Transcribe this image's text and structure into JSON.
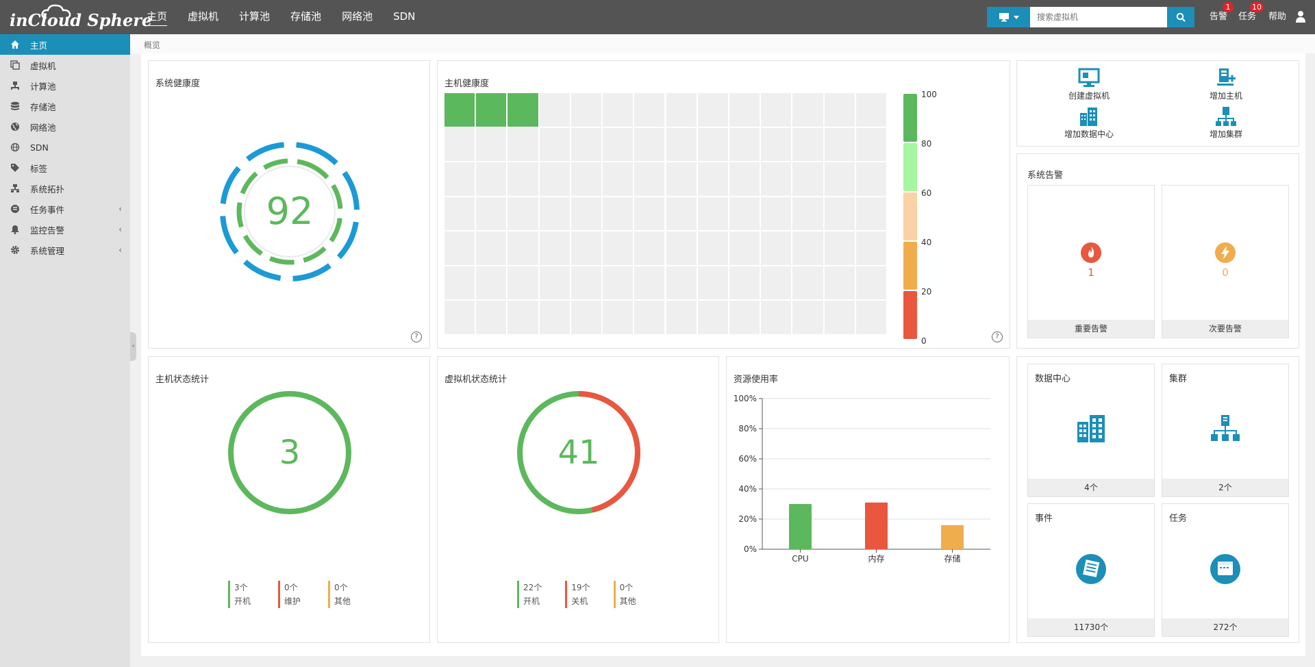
{
  "app": {
    "logo_text": "inCloud Sphere"
  },
  "topnav": [
    "主页",
    "虚拟机",
    "计算池",
    "存储池",
    "网络池",
    "SDN"
  ],
  "search": {
    "placeholder": "搜索虚拟机"
  },
  "tools": {
    "alarm": {
      "label": "告警",
      "badge": "1"
    },
    "task": {
      "label": "任务",
      "badge": "10"
    },
    "help": {
      "label": "帮助"
    }
  },
  "sidebar": {
    "items": [
      {
        "label": "主页",
        "icon": "home-icon"
      },
      {
        "label": "虚拟机",
        "icon": "vm-icon"
      },
      {
        "label": "计算池",
        "icon": "compute-icon"
      },
      {
        "label": "存储池",
        "icon": "storage-icon"
      },
      {
        "label": "网络池",
        "icon": "globe-icon"
      },
      {
        "label": "SDN",
        "icon": "sdn-icon"
      },
      {
        "label": "标签",
        "icon": "tag-icon"
      },
      {
        "label": "系统拓扑",
        "icon": "topology-icon"
      },
      {
        "label": "任务事件",
        "icon": "task-event-icon"
      },
      {
        "label": "监控告警",
        "icon": "bell-icon"
      },
      {
        "label": "系统管理",
        "icon": "gear-icon"
      }
    ]
  },
  "breadcrumb": "概览",
  "health": {
    "title": "系统健康度",
    "score": "92"
  },
  "host_health": {
    "title": "主机健康度",
    "grid_rows": 7,
    "grid_cols": 14,
    "host_scores": [
      100,
      100,
      100
    ],
    "scale_ticks": [
      "100",
      "80",
      "60",
      "40",
      "20",
      "0"
    ],
    "scale_colors": [
      "#5cb85c",
      "#a6f5a0",
      "#f9d3a5",
      "#f0ad4e",
      "#e9573f"
    ]
  },
  "host_stats": {
    "title": "主机状态统计",
    "total": "3",
    "legend": [
      {
        "value": "3个",
        "label": "开机",
        "color": "#5cb85c"
      },
      {
        "value": "0个",
        "label": "维护",
        "color": "#e9573f"
      },
      {
        "value": "0个",
        "label": "其他",
        "color": "#f0ad4e"
      }
    ]
  },
  "vm_stats": {
    "title": "虚拟机状态统计",
    "total": "41",
    "legend": [
      {
        "value": "22个",
        "label": "开机",
        "color": "#5cb85c"
      },
      {
        "value": "19个",
        "label": "关机",
        "color": "#e9573f"
      },
      {
        "value": "0个",
        "label": "其他",
        "color": "#f0ad4e"
      }
    ]
  },
  "chart_data": {
    "type": "bar",
    "title": "资源使用率",
    "categories": [
      "CPU",
      "内存",
      "存储"
    ],
    "values": [
      30,
      31,
      16
    ],
    "colors": [
      "#5cb85c",
      "#e9573f",
      "#f0ad4e"
    ],
    "ylim": [
      0,
      100
    ],
    "yticks": [
      "0%",
      "20%",
      "40%",
      "60%",
      "80%",
      "100%"
    ],
    "grid": true
  },
  "quick_actions": [
    {
      "label": "创建虚拟机",
      "icon": "create-vm-icon"
    },
    {
      "label": "增加主机",
      "icon": "add-host-icon"
    },
    {
      "label": "增加数据中心",
      "icon": "add-datacenter-icon"
    },
    {
      "label": "增加集群",
      "icon": "add-cluster-icon"
    }
  ],
  "alarms": {
    "title": "系统告警",
    "critical": {
      "count": "1",
      "label": "重要告警",
      "color": "#e9573f"
    },
    "minor": {
      "count": "0",
      "label": "次要告警",
      "color": "#f0ad4e"
    }
  },
  "resources": [
    {
      "title": "数据中心",
      "value": "4个",
      "icon": "datacenter-icon"
    },
    {
      "title": "集群",
      "value": "2个",
      "icon": "cluster-icon"
    },
    {
      "title": "事件",
      "value": "11730个",
      "icon": "event-icon"
    },
    {
      "title": "任务",
      "value": "272个",
      "icon": "task-icon"
    }
  ],
  "colors": {
    "accent": "#1b8fb8",
    "green": "#5cb85c",
    "red": "#e9573f",
    "orange": "#f0ad4e",
    "blue": "#1b9ad6"
  }
}
